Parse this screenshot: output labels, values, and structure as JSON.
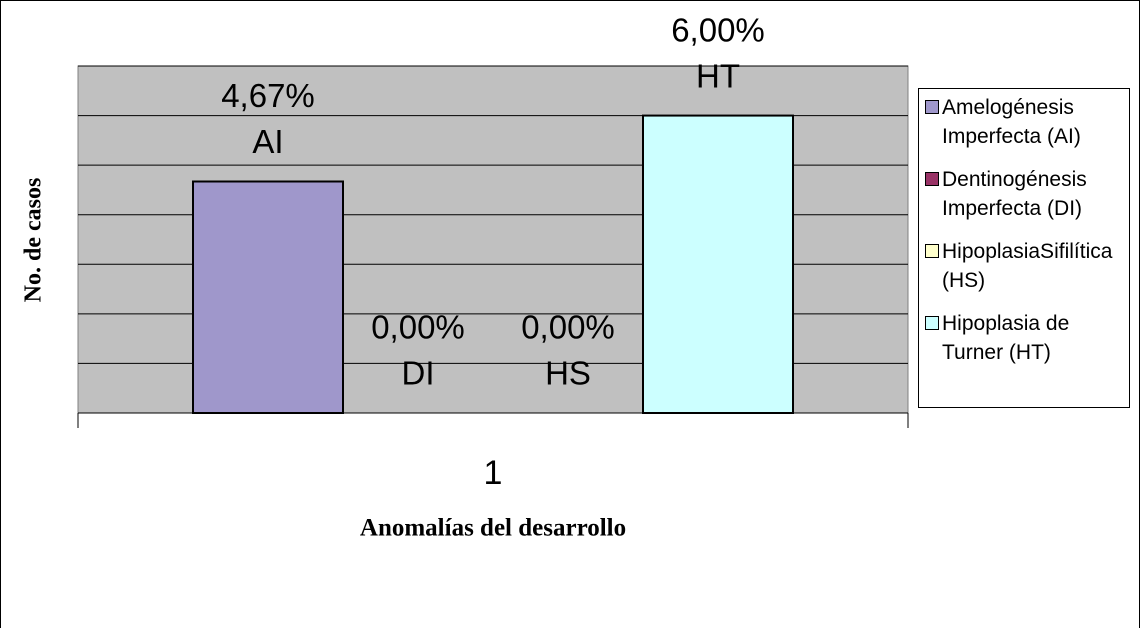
{
  "chart_data": {
    "type": "bar",
    "x_label": "Anomalías del desarrollo",
    "y_label": "No. de casos",
    "categories": [
      "1"
    ],
    "series": [
      {
        "name": "Amelogénesis Imperfecta (AI)",
        "short": "AI",
        "color": "#9f97cb",
        "values": [
          4.67
        ],
        "value_labels": [
          "4,67%"
        ]
      },
      {
        "name": "Dentinogénesis Imperfecta (DI)",
        "short": "DI",
        "color": "#993366",
        "values": [
          0
        ],
        "value_labels": [
          "0,00%"
        ]
      },
      {
        "name": "HipoplasiaSifilítica (HS)",
        "short": "HS",
        "color": "#ffffcc",
        "values": [
          0
        ],
        "value_labels": [
          "0,00%"
        ]
      },
      {
        "name": "Hipoplasia de Turner (HT)",
        "short": "HT",
        "color": "#ccffff",
        "values": [
          6.0
        ],
        "value_labels": [
          "6,00%"
        ]
      }
    ],
    "ylim": [
      0,
      7
    ],
    "yticks": [
      0,
      1,
      2,
      3,
      4,
      5,
      6,
      7
    ],
    "grid": true,
    "plot_background": "#c0c0c0",
    "legend": "right"
  }
}
